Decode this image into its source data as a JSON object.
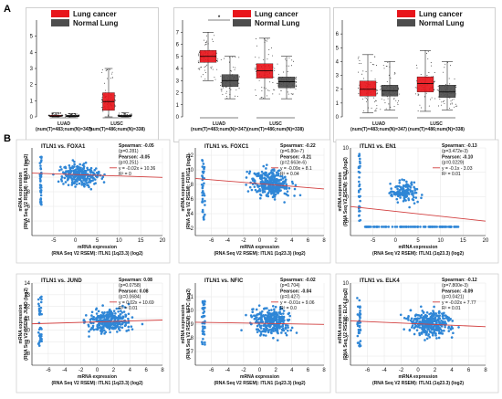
{
  "panel_labels": {
    "a": "A",
    "b": "B"
  },
  "colors": {
    "tumor": "#e8151b",
    "normal": "#4d4d4d",
    "points": "#2f86d6",
    "fit": "#d24040"
  },
  "chart_data": [
    {
      "type": "box",
      "legend": [
        "Lung cancer",
        "Normal Lung"
      ],
      "categories": [
        "LUAD",
        "LUSC"
      ],
      "category_notes": [
        "(num(T)=483;num(N)=347)",
        "(num(T)=486;num(N)=338)"
      ],
      "ylim": [
        0,
        6
      ],
      "yticks": [
        0,
        1,
        2,
        3,
        4,
        5
      ],
      "boxes": [
        {
          "group": "LUAD",
          "series": "Lung cancer",
          "q1": 0.02,
          "median": 0.05,
          "q3": 0.1,
          "whisker_low": 0.0,
          "whisker_high": 0.25
        },
        {
          "group": "LUAD",
          "series": "Normal Lung",
          "q1": 0.02,
          "median": 0.05,
          "q3": 0.1,
          "whisker_low": 0.0,
          "whisker_high": 0.2
        },
        {
          "group": "LUSC",
          "series": "Lung cancer",
          "q1": 0.4,
          "median": 0.95,
          "q3": 1.5,
          "whisker_low": 0.0,
          "whisker_high": 3.0
        },
        {
          "group": "LUSC",
          "series": "Normal Lung",
          "q1": 0.02,
          "median": 0.05,
          "q3": 0.1,
          "whisker_low": 0.0,
          "whisker_high": 0.25
        }
      ]
    },
    {
      "type": "box",
      "legend": [
        "Lung cancer",
        "Normal Lung"
      ],
      "categories": [
        "LUAD",
        "LUSC"
      ],
      "category_notes": [
        "(num(T)=483;num(N)=347)",
        "(num(T)=486;num(N)=338)"
      ],
      "ylim": [
        0,
        8
      ],
      "yticks": [
        0,
        1,
        2,
        3,
        4,
        5,
        6,
        7
      ],
      "significance": "*",
      "boxes": [
        {
          "group": "LUAD",
          "series": "Lung cancer",
          "q1": 4.5,
          "median": 5.0,
          "q3": 5.5,
          "whisker_low": 3.0,
          "whisker_high": 7.0
        },
        {
          "group": "LUAD",
          "series": "Normal Lung",
          "q1": 2.5,
          "median": 3.0,
          "q3": 3.5,
          "whisker_low": 1.5,
          "whisker_high": 5.0
        },
        {
          "group": "LUSC",
          "series": "Lung cancer",
          "q1": 3.2,
          "median": 3.8,
          "q3": 4.4,
          "whisker_low": 1.5,
          "whisker_high": 6.5
        },
        {
          "group": "LUSC",
          "series": "Normal Lung",
          "q1": 2.4,
          "median": 2.9,
          "q3": 3.3,
          "whisker_low": 1.5,
          "whisker_high": 5.0
        }
      ]
    },
    {
      "type": "box",
      "legend": [
        "Lung cancer",
        "Normal Lung"
      ],
      "categories": [
        "LUAD",
        "LUSC"
      ],
      "category_notes": [
        "(num(T)=483;num(N)=347)",
        "(num(T)=486;num(N)=338)"
      ],
      "ylim": [
        0,
        7
      ],
      "yticks": [
        0,
        1,
        2,
        3,
        4,
        5,
        6
      ],
      "boxes": [
        {
          "group": "LUAD",
          "series": "Lung cancer",
          "q1": 1.5,
          "median": 2.0,
          "q3": 2.6,
          "whisker_low": 0.3,
          "whisker_high": 4.5
        },
        {
          "group": "LUAD",
          "series": "Normal Lung",
          "q1": 1.5,
          "median": 1.9,
          "q3": 2.3,
          "whisker_low": 0.5,
          "whisker_high": 4.0
        },
        {
          "group": "LUSC",
          "series": "Lung cancer",
          "q1": 1.8,
          "median": 2.4,
          "q3": 2.9,
          "whisker_low": 0.4,
          "whisker_high": 4.8
        },
        {
          "group": "LUSC",
          "series": "Normal Lung",
          "q1": 1.4,
          "median": 1.8,
          "q3": 2.3,
          "whisker_low": 0.5,
          "whisker_high": 4.0
        }
      ]
    },
    {
      "type": "scatter",
      "title": "ITLN1 vs. FOXA1",
      "xlabel": [
        "mRNA expression",
        "(RNA Seq V2 RSEM): ITLN1 (1q23.3) (log2)"
      ],
      "ylabel": [
        "mRNA expression",
        "(RNA Seq V2 RSEM): FOXA1 (log2)"
      ],
      "xlim": [
        -10,
        20
      ],
      "ylim": [
        2,
        14
      ],
      "xticks": [
        -5,
        0,
        5,
        10,
        15,
        20
      ],
      "yticks": [
        4,
        6,
        8,
        10,
        12
      ],
      "stats": [
        "Spearman: -0.05",
        "(p=0.281)",
        "Pearson: -0.05",
        "(p=0.251)",
        "y = -0.02x + 10.36",
        "R² = 0"
      ],
      "fit": {
        "slope": -0.02,
        "intercept": 10.36
      },
      "cloud": {
        "cx": 1,
        "cy": 10.4,
        "sx": 3.5,
        "sy": 1.2,
        "n": 260
      },
      "stripe": {
        "x": -8,
        "ymin": 6,
        "ymax": 13,
        "n": 40
      }
    },
    {
      "type": "scatter",
      "title": "ITLN1 vs. FOXC1",
      "xlabel": [
        "mRNA expression",
        "(RNA Seq V2 RSEM): ITLN1 (1q23.3) (log2)"
      ],
      "ylabel": [
        "mRNA expression",
        "(RNA Seq V2 RSEM): FOXC1 (log2)"
      ],
      "xlim": [
        -8,
        8
      ],
      "ylim": [
        1,
        13
      ],
      "xticks": [
        -6,
        -4,
        -2,
        0,
        2,
        4,
        6,
        8
      ],
      "yticks": [
        2,
        4,
        6,
        8,
        10,
        12
      ],
      "stats": [
        "Spearman: -0.22",
        "(p=6.80e-7)",
        "Pearson: -0.21",
        "(p=2.663e-6)",
        "y = -0.09x + 8.1",
        "R² = 0.04"
      ],
      "fit": {
        "slope": -0.09,
        "intercept": 8.1
      },
      "cloud": {
        "cx": 1.5,
        "cy": 8.0,
        "sx": 2.0,
        "sy": 1.6,
        "n": 300
      },
      "stripe": {
        "x": -7,
        "ymin": 3,
        "ymax": 12,
        "n": 40
      }
    },
    {
      "type": "scatter",
      "title": "ITLN1 vs. EN1",
      "xlabel": [
        "mRNA expression",
        "(RNA Seq V2 RSEM): ITLN1 (1q23.3) (log2)"
      ],
      "ylabel": [
        "mRNA expression",
        "(RNA Seq V2 RSEM): EN1 (log2)"
      ],
      "xlim": [
        -10,
        20
      ],
      "ylim": [
        -8,
        10
      ],
      "xticks": [
        -5,
        0,
        5,
        10,
        15,
        20
      ],
      "yticks": [
        -5,
        0,
        5,
        10
      ],
      "stats": [
        "Spearman: -0.13",
        "(p=3.472e-3)",
        "Pearson: -0.10",
        "(p=0.0229)",
        "y = -0.1x - 3.03",
        "R² = 0.01"
      ],
      "fit": {
        "slope": -0.1,
        "intercept": -3.03
      },
      "cloud": {
        "cx": 2,
        "cy": 1.0,
        "sx": 2.5,
        "sy": 1.8,
        "n": 150
      },
      "floor": {
        "y": -6.2,
        "xmin": -7,
        "xmax": 14,
        "n": 110
      },
      "stripe": {
        "x": -8,
        "ymin": -6,
        "ymax": 9,
        "n": 35
      }
    },
    {
      "type": "scatter",
      "title": "ITLN1 vs. JUND",
      "xlabel": [
        "mRNA expression",
        "(RNA Seq V2 RSEM): ITLN1 (1q23.3) (log2)"
      ],
      "ylabel": [
        "mRNA expression",
        "(RNA Seq V2 RSEM): JUND (log2)"
      ],
      "xlim": [
        -8,
        8
      ],
      "ylim": [
        7,
        14
      ],
      "xticks": [
        -6,
        -4,
        -2,
        0,
        2,
        4,
        6,
        8
      ],
      "yticks": [
        8,
        9,
        10,
        11,
        12,
        13,
        14
      ],
      "stats": [
        "Spearman: 0.08",
        "(p=0.0758)",
        "Pearson: 0.08",
        "(p=0.0684)",
        "y = 0.02x + 10.69",
        "R² = 0.01"
      ],
      "fit": {
        "slope": 0.02,
        "intercept": 10.69
      },
      "cloud": {
        "cx": 1.5,
        "cy": 10.8,
        "sx": 2.0,
        "sy": 0.9,
        "n": 300
      },
      "stripe": {
        "x": -7,
        "ymin": 8.5,
        "ymax": 13,
        "n": 40
      }
    },
    {
      "type": "scatter",
      "title": "ITLN1 vs. NFIC",
      "xlabel": [
        "mRNA expression",
        "(RNA Seq V2 RSEM): ITLN1 (1q23.3) (log2)"
      ],
      "ylabel": [
        "mRNA expression",
        "(RNA Seq V2 RSEM): NFIC (log2)"
      ],
      "xlim": [
        -8,
        8
      ],
      "ylim": [
        6,
        12
      ],
      "xticks": [
        -6,
        -4,
        -2,
        0,
        2,
        4,
        6,
        8
      ],
      "yticks": [
        7,
        8,
        9,
        10,
        11
      ],
      "stats": [
        "Spearman: -0.02",
        "(p=0.704)",
        "Pearson: -0.04",
        "(p=0.427)",
        "y = -0.01x + 9.06",
        "R² = 0.0"
      ],
      "fit": {
        "slope": -0.01,
        "intercept": 9.06
      },
      "cloud": {
        "cx": 1.5,
        "cy": 9.2,
        "sx": 2.0,
        "sy": 0.8,
        "n": 300
      },
      "stripe": {
        "x": -7,
        "ymin": 7.5,
        "ymax": 11,
        "n": 40
      }
    },
    {
      "type": "scatter",
      "title": "ITLN1 vs. ELK4",
      "xlabel": [
        "mRNA expression",
        "(RNA Seq V2 RSEM): ITLN1 (1q23.3) (log2)"
      ],
      "ylabel": [
        "mRNA expression",
        "(RNA Seq V2 RSEM): ELK4 (log2)"
      ],
      "xlim": [
        -8,
        8
      ],
      "ylim": [
        5.5,
        10
      ],
      "xticks": [
        -6,
        -4,
        -2,
        0,
        2,
        4,
        6,
        8
      ],
      "yticks": [
        6,
        7,
        8,
        9,
        10
      ],
      "stats": [
        "Spearman: -0.12",
        "(p=7.800e-3)",
        "Pearson: -0.09",
        "(p=0.0421)",
        "y = -0.02x + 7.77",
        "R² = 0.01"
      ],
      "fit": {
        "slope": -0.02,
        "intercept": 7.77
      },
      "cloud": {
        "cx": 1.5,
        "cy": 7.8,
        "sx": 2.0,
        "sy": 0.6,
        "n": 300
      },
      "stripe": {
        "x": -7,
        "ymin": 6.5,
        "ymax": 9.5,
        "n": 40
      }
    }
  ]
}
